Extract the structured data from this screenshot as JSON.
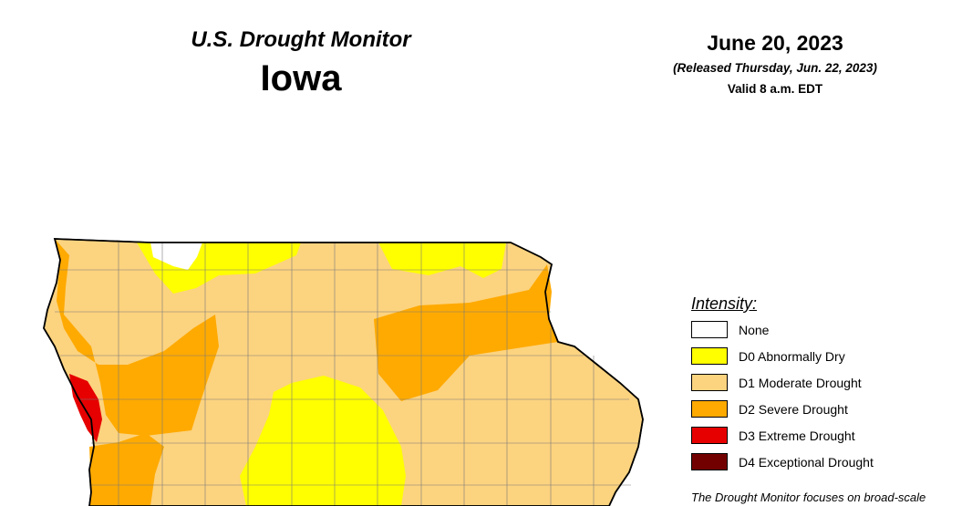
{
  "header": {
    "title": "U.S. Drought Monitor",
    "state": "Iowa",
    "date": "June 20, 2023",
    "released": "(Released Thursday, Jun. 22, 2023)",
    "valid": "Valid 8 a.m. EDT"
  },
  "legend": {
    "title": "Intensity:",
    "items": [
      {
        "label": "None",
        "color": "#ffffff"
      },
      {
        "label": "D0 Abnormally Dry",
        "color": "#ffff00"
      },
      {
        "label": "D1 Moderate Drought",
        "color": "#fcd37f"
      },
      {
        "label": "D2 Severe Drought",
        "color": "#ffaa00"
      },
      {
        "label": "D3 Extreme Drought",
        "color": "#e60000"
      },
      {
        "label": "D4 Exceptional Drought",
        "color": "#730000"
      }
    ]
  },
  "footnote": "The Drought Monitor focuses on broad-scale"
}
